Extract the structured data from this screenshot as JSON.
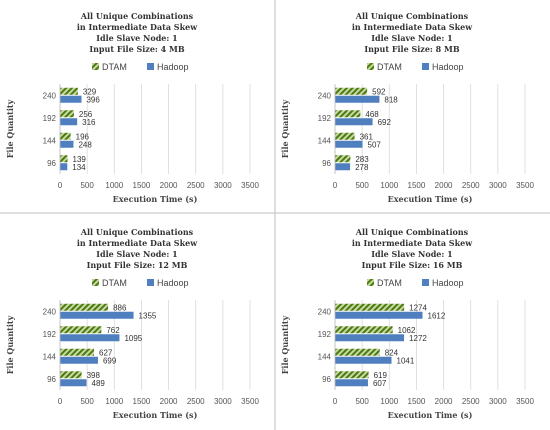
{
  "colors": {
    "dtam": "#4d7a0e",
    "hadoop": "#4f7fbe",
    "grid": "#d9d9d9",
    "divider": "#bfbfbf"
  },
  "chart_data": [
    {
      "type": "bar",
      "orientation": "horizontal",
      "title": [
        "All Unique Combinations",
        "in Intermediate Data Skew",
        "Idle Slave Node: 1",
        "Input File Size: 4 MB"
      ],
      "xlabel": "Execution Time (s)",
      "ylabel": "File Quantity",
      "xlim": [
        0,
        3500
      ],
      "xticks": [
        0,
        500,
        1000,
        1500,
        2000,
        2500,
        3000,
        3500
      ],
      "categories": [
        "240",
        "192",
        "144",
        "96"
      ],
      "legend_position": "top",
      "grid": true,
      "series": [
        {
          "name": "DTAM",
          "values": [
            329,
            256,
            196,
            139
          ]
        },
        {
          "name": "Hadoop",
          "values": [
            396,
            316,
            248,
            134
          ]
        }
      ]
    },
    {
      "type": "bar",
      "orientation": "horizontal",
      "title": [
        "All Unique Combinations",
        "in Intermediate Data Skew",
        "Idle Slave Node: 1",
        "Input File Size: 8 MB"
      ],
      "xlabel": "Execution Time (s)",
      "ylabel": "File Quantity",
      "xlim": [
        0,
        3500
      ],
      "xticks": [
        0,
        500,
        1000,
        1500,
        2000,
        2500,
        3000,
        3500
      ],
      "categories": [
        "240",
        "192",
        "144",
        "96"
      ],
      "legend_position": "top",
      "grid": true,
      "series": [
        {
          "name": "DTAM",
          "values": [
            592,
            468,
            361,
            283
          ]
        },
        {
          "name": "Hadoop",
          "values": [
            818,
            692,
            507,
            278
          ]
        }
      ]
    },
    {
      "type": "bar",
      "orientation": "horizontal",
      "title": [
        "All Unique Combinations",
        "in Intermediate Data Skew",
        "Idle Slave Node: 1",
        "Input File Size: 12 MB"
      ],
      "xlabel": "Execution Time (s)",
      "ylabel": "File Quantity",
      "xlim": [
        0,
        3500
      ],
      "xticks": [
        0,
        500,
        1000,
        1500,
        2000,
        2500,
        3000,
        3500
      ],
      "categories": [
        "240",
        "192",
        "144",
        "96"
      ],
      "legend_position": "top",
      "grid": true,
      "series": [
        {
          "name": "DTAM",
          "values": [
            886,
            762,
            627,
            398
          ]
        },
        {
          "name": "Hadoop",
          "values": [
            1355,
            1095,
            699,
            489
          ]
        }
      ]
    },
    {
      "type": "bar",
      "orientation": "horizontal",
      "title": [
        "All Unique Combinations",
        "in Intermediate Data Skew",
        "Idle Slave Node: 1",
        "Input File Size: 16 MB"
      ],
      "xlabel": "Execution Time (s)",
      "ylabel": "File Quantity",
      "xlim": [
        0,
        3500
      ],
      "xticks": [
        0,
        500,
        1000,
        1500,
        2000,
        2500,
        3000,
        3500
      ],
      "categories": [
        "240",
        "192",
        "144",
        "96"
      ],
      "legend_position": "top",
      "grid": true,
      "series": [
        {
          "name": "DTAM",
          "values": [
            1274,
            1062,
            824,
            619
          ]
        },
        {
          "name": "Hadoop",
          "values": [
            1612,
            1272,
            1041,
            607
          ]
        }
      ]
    }
  ]
}
